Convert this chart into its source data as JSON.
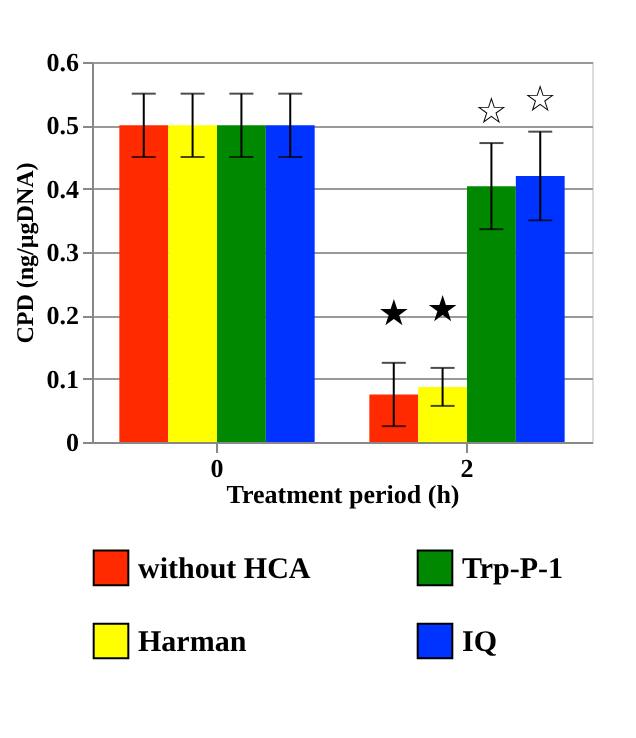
{
  "chart_data": {
    "type": "bar",
    "xlabel": "Treatment period  (h)",
    "ylabel": "CPD (ng/µgDNA)",
    "categories": [
      "0",
      "2"
    ],
    "series": [
      {
        "name": "without HCA",
        "color": "#ff2a00",
        "values": [
          0.5,
          0.075
        ],
        "errors": [
          0.05,
          0.05
        ]
      },
      {
        "name": "Harman",
        "color": "#ffff00",
        "values": [
          0.5,
          0.087
        ],
        "errors": [
          0.05,
          0.03
        ]
      },
      {
        "name": "Trp-P-1",
        "color": "#008800",
        "values": [
          0.5,
          0.404
        ],
        "errors": [
          0.05,
          0.068
        ]
      },
      {
        "name": "IQ",
        "color": "#0033ff",
        "values": [
          0.5,
          0.42
        ],
        "errors": [
          0.05,
          0.07
        ]
      }
    ],
    "annotations": [
      {
        "text": "★",
        "x": "2",
        "y": 0.2
      },
      {
        "text": "★",
        "x": "2",
        "y": 0.207
      },
      {
        "text": "☆",
        "x": "2",
        "y": 0.404
      },
      {
        "text": "☆",
        "x": "2",
        "y": 0.42
      }
    ],
    "ylim": [
      0,
      0.6
    ],
    "yticks": [
      0,
      0.1,
      0.2,
      0.3,
      0.4,
      0.5,
      0.6
    ],
    "grid": "y",
    "legend": "bottom"
  }
}
